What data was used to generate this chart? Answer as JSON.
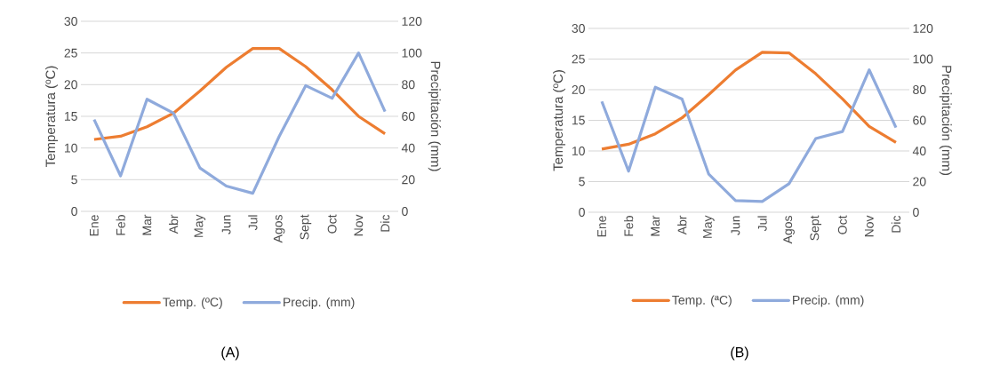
{
  "chart_data": [
    {
      "type": "line",
      "categories": [
        "Ene",
        "Feb",
        "Mar",
        "Abr",
        "May",
        "Jun",
        "Jul",
        "Agos",
        "Sept",
        "Oct",
        "Nov",
        "Dic"
      ],
      "ylabel": "Temperatura (ºC)",
      "y2label": "Precipitación (mm)",
      "ylim": [
        0,
        30
      ],
      "yticks": [
        0,
        5,
        10,
        15,
        20,
        25,
        30
      ],
      "y2lim": [
        0,
        120
      ],
      "y2ticks": [
        0,
        20,
        40,
        60,
        80,
        100,
        120
      ],
      "grid": "y",
      "legend": "bottom",
      "annotations": [
        "(A)"
      ],
      "series": [
        {
          "name": "Temp. (ºC)",
          "color": "#ed7d31",
          "values": [
            11.35,
            11.85,
            13.35,
            15.5,
            19,
            22.75,
            25.7,
            25.7,
            22.85,
            19.2,
            15,
            12.25
          ]
        },
        {
          "name": "Precip. (mm)",
          "color": "#8faadc",
          "axis": "y2",
          "values": [
            58,
            22.4,
            70.8,
            62,
            27.4,
            16,
            11.4,
            47.4,
            79.4,
            71.4,
            100,
            63
          ]
        }
      ]
    },
    {
      "type": "line",
      "categories": [
        "Ene",
        "Feb",
        "Mar",
        "Abr",
        "May",
        "Jun",
        "Jul",
        "Agos",
        "Sept",
        "Oct",
        "Nov",
        "Dic"
      ],
      "ylabel": "Temperatura (ºC)",
      "y2label": "Precipitación (mm)",
      "ylim": [
        0,
        30
      ],
      "yticks": [
        0,
        5,
        10,
        15,
        20,
        25,
        30
      ],
      "y2lim": [
        0,
        120
      ],
      "y2ticks": [
        0,
        20,
        40,
        60,
        80,
        100,
        120
      ],
      "grid": "y",
      "legend": "bottom",
      "annotations": [
        "(B)"
      ],
      "series": [
        {
          "name": "Temp. (ªC)",
          "color": "#ed7d31",
          "values": [
            10.3,
            11.1,
            12.8,
            15.4,
            19.2,
            23.2,
            26.1,
            26.0,
            22.6,
            18.5,
            14.0,
            11.4
          ]
        },
        {
          "name": "Precip. (mm)",
          "color": "#8faadc",
          "axis": "y2",
          "values": [
            72.3,
            26.8,
            81.6,
            73.9,
            24.8,
            7.6,
            7,
            18.6,
            48.1,
            52.7,
            92.9,
            55.3
          ]
        }
      ]
    }
  ]
}
